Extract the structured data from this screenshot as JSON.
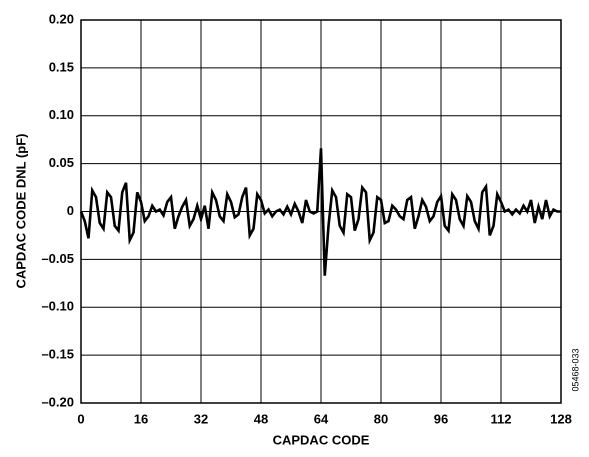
{
  "chart_data": {
    "type": "line",
    "xlabel": "CAPDAC CODE",
    "ylabel": "CAPDAC CODE DNL (pF)",
    "note": "05468-033",
    "x": [
      0,
      1,
      2,
      3,
      4,
      5,
      6,
      7,
      8,
      9,
      10,
      11,
      12,
      13,
      14,
      15,
      16,
      17,
      18,
      19,
      20,
      21,
      22,
      23,
      24,
      25,
      26,
      27,
      28,
      29,
      30,
      31,
      32,
      33,
      34,
      35,
      36,
      37,
      38,
      39,
      40,
      41,
      42,
      43,
      44,
      45,
      46,
      47,
      48,
      49,
      50,
      51,
      52,
      53,
      54,
      55,
      56,
      57,
      58,
      59,
      60,
      61,
      62,
      63,
      64,
      65,
      66,
      67,
      68,
      69,
      70,
      71,
      72,
      73,
      74,
      75,
      76,
      77,
      78,
      79,
      80,
      81,
      82,
      83,
      84,
      85,
      86,
      87,
      88,
      89,
      90,
      91,
      92,
      93,
      94,
      95,
      96,
      97,
      98,
      99,
      100,
      101,
      102,
      103,
      104,
      105,
      106,
      107,
      108,
      109,
      110,
      111,
      112,
      113,
      114,
      115,
      116,
      117,
      118,
      119,
      120,
      121,
      122,
      123,
      124,
      125,
      126,
      127,
      128
    ],
    "series": [
      {
        "name": "DNL",
        "color": "#000000",
        "values": [
          0,
          -0.01,
          -0.028,
          0.022,
          0.015,
          -0.012,
          -0.018,
          0.02,
          0.015,
          -0.015,
          -0.02,
          0.02,
          0.03,
          -0.03,
          -0.022,
          0.02,
          0.01,
          -0.01,
          -0.005,
          0.006,
          0,
          0.002,
          -0.004,
          0.01,
          0.015,
          -0.018,
          -0.005,
          0.005,
          0.012,
          -0.015,
          -0.008,
          0.006,
          -0.008,
          0.006,
          -0.018,
          0.02,
          0.012,
          -0.005,
          -0.01,
          0.018,
          0.01,
          -0.006,
          -0.003,
          0.015,
          0.025,
          -0.025,
          -0.018,
          0.018,
          0.012,
          -0.002,
          0.002,
          -0.005,
          0,
          0.002,
          -0.003,
          0.005,
          -0.003,
          0.008,
          0,
          -0.012,
          0.012,
          0,
          -0.002,
          0,
          0.066,
          -0.067,
          -0.015,
          0.022,
          0.015,
          -0.015,
          -0.022,
          0.018,
          0.015,
          -0.02,
          -0.008,
          0.025,
          0.02,
          -0.03,
          -0.022,
          0.015,
          0.012,
          -0.012,
          -0.01,
          0.006,
          0.002,
          -0.005,
          -0.008,
          0.012,
          0.015,
          -0.018,
          -0.005,
          0.012,
          0.005,
          -0.01,
          -0.005,
          0.01,
          0.016,
          -0.015,
          -0.02,
          0.018,
          0.012,
          -0.008,
          -0.015,
          0.016,
          0.01,
          -0.01,
          -0.018,
          0.02,
          0.026,
          -0.025,
          -0.015,
          0.018,
          0.01,
          0,
          0.002,
          -0.003,
          0.002,
          -0.002,
          0.006,
          0,
          0.012,
          -0.012,
          0.005,
          -0.008,
          0.012,
          -0.005,
          0.002,
          0,
          0
        ]
      }
    ],
    "xlim": [
      0,
      128
    ],
    "xticks": [
      0,
      16,
      32,
      48,
      64,
      80,
      96,
      112,
      128
    ],
    "ylim": [
      -0.2,
      0.2
    ],
    "yticks": [
      {
        "value": 0.2,
        "label": "0.20"
      },
      0.15,
      {
        "value": 0.1,
        "label": "0.10"
      },
      0.05,
      0,
      {
        "value": -0.05,
        "label": "–0.05"
      },
      {
        "value": -0.1,
        "label": "–0.10"
      },
      {
        "value": -0.15,
        "label": "–0.15"
      },
      {
        "value": -0.2,
        "label": "–0.20"
      }
    ],
    "grid": true
  }
}
